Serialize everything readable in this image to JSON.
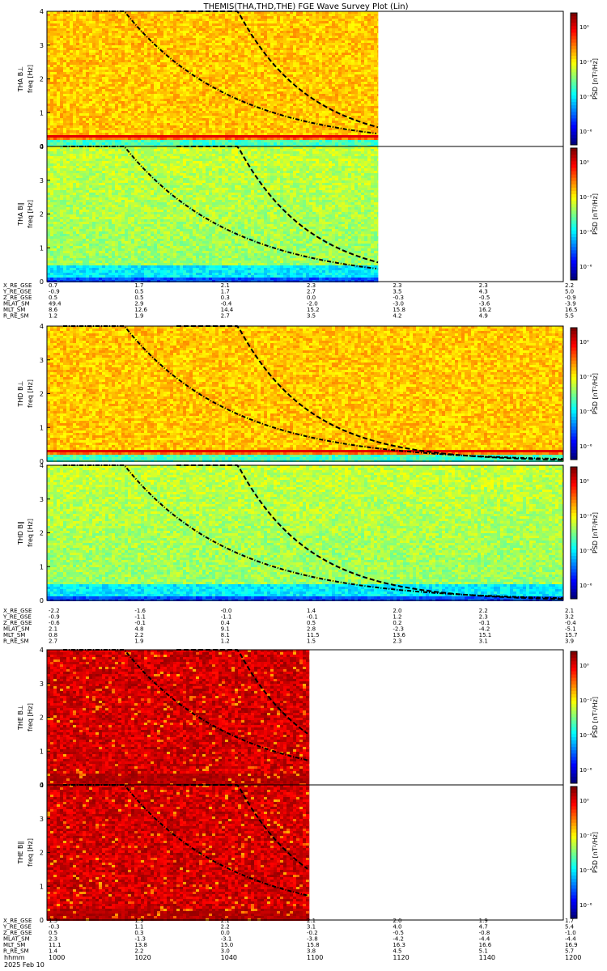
{
  "title": "THEMIS(THA,THD,THE) FGE Wave Survey Plot (Lin)",
  "colorbar": {
    "label": "PSD [nT²/Hz]",
    "ticks": [
      "10⁰",
      "10⁻²",
      "10⁻⁴",
      "10⁻⁶"
    ]
  },
  "freq_ticks": [
    "0",
    "1",
    "2",
    "3",
    "4"
  ],
  "colors": {
    "high": "#e00000",
    "mid": "#ffff00",
    "low": "#00c8ff",
    "floor": "#0000b0"
  },
  "chart_data": {
    "type": "heatmap",
    "x_range": [
      1000,
      1200
    ],
    "y_range": [
      0,
      4
    ],
    "y_unit": "Hz",
    "time_ticks": [
      "1000",
      "1020",
      "1040",
      "1100",
      "1120",
      "1140",
      "1200"
    ],
    "time_axis_label": "hhmm",
    "date_label": "2025 Feb 10",
    "panels": [
      {
        "name": "THA B⊥",
        "ylabel": "freq [Hz]",
        "data_end": 1077,
        "level": "mid"
      },
      {
        "name": "THA B∥",
        "ylabel": "freq [Hz]",
        "data_end": 1077,
        "level": "low"
      },
      {
        "name": "THD B⊥",
        "ylabel": "freq [Hz]",
        "data_end": 1200,
        "level": "mid"
      },
      {
        "name": "THD B∥",
        "ylabel": "freq [Hz]",
        "data_end": 1200,
        "level": "low"
      },
      {
        "name": "THE B⊥",
        "ylabel": "freq [Hz]",
        "data_end": 1061,
        "level": "high"
      },
      {
        "name": "THE B∥",
        "ylabel": "freq [Hz]",
        "data_end": 1061,
        "level": "high"
      }
    ],
    "ephemeris_blocks": [
      {
        "probe": "THA",
        "rows": [
          {
            "label": "X_RE_GSE",
            "values": [
              "0.7",
              "1.7",
              "2.1",
              "2.3",
              "2.3",
              "2.3",
              "2.2"
            ]
          },
          {
            "label": "Y_RE_GSE",
            "values": [
              "-0.9",
              "0.5",
              "1.7",
              "2.7",
              "3.5",
              "4.3",
              "5.0"
            ]
          },
          {
            "label": "Z_RE_GSE",
            "values": [
              "0.5",
              "0.5",
              "0.3",
              "0.0",
              "-0.3",
              "-0.5",
              "-0.9"
            ]
          },
          {
            "label": "MLAT_SM",
            "values": [
              "49.4",
              "2.9",
              "-0.4",
              "-2.0",
              "-3.0",
              "-3.6",
              "-3.9"
            ]
          },
          {
            "label": "MLT_SM",
            "values": [
              "8.6",
              "12.6",
              "14.4",
              "15.2",
              "15.8",
              "16.2",
              "16.5"
            ]
          },
          {
            "label": "R_RE_SM",
            "values": [
              "1.2",
              "1.9",
              "2.7",
              "3.5",
              "4.2",
              "4.9",
              "5.5"
            ]
          }
        ]
      },
      {
        "probe": "THD",
        "rows": [
          {
            "label": "X_RE_GSE",
            "values": [
              "-2.2",
              "-1.6",
              "-0.0",
              "1.4",
              "2.0",
              "2.2",
              "2.1"
            ]
          },
          {
            "label": "Y_RE_GSE",
            "values": [
              "-0.9",
              "-1.1",
              "-1.1",
              "-0.1",
              "1.2",
              "2.3",
              "3.2"
            ]
          },
          {
            "label": "Z_RE_GSE",
            "values": [
              "-0.6",
              "-0.1",
              "0.4",
              "0.5",
              "0.2",
              "-0.1",
              "-0.4"
            ]
          },
          {
            "label": "MLAT_SM",
            "values": [
              "2.1",
              "4.8",
              "9.1",
              "2.8",
              "-2.3",
              "-4.2",
              "-5.1"
            ]
          },
          {
            "label": "MLT_SM",
            "values": [
              "0.8",
              "2.2",
              "8.1",
              "11.5",
              "13.6",
              "15.1",
              "15.7"
            ]
          },
          {
            "label": "R_RE_SM",
            "values": [
              "2.7",
              "1.9",
              "1.2",
              "1.5",
              "2.3",
              "3.1",
              "3.9"
            ]
          }
        ]
      },
      {
        "probe": "THE",
        "rows": [
          {
            "label": "X_RE_GSE",
            "values": [
              "1.3",
              "1.9",
              "2.1",
              "2.1",
              "2.0",
              "1.9",
              "1.7"
            ]
          },
          {
            "label": "Y_RE_GSE",
            "values": [
              "-0.3",
              "1.1",
              "2.2",
              "3.1",
              "4.0",
              "4.7",
              "5.4"
            ]
          },
          {
            "label": "Z_RE_GSE",
            "values": [
              "0.5",
              "0.3",
              "0.0",
              "-0.2",
              "-0.5",
              "-0.8",
              "-1.0"
            ]
          },
          {
            "label": "MLAT_SM",
            "values": [
              "2.3",
              "-1.3",
              "-3.1",
              "-3.8",
              "-4.2",
              "-4.4",
              "-4.4"
            ]
          },
          {
            "label": "MLT_SM",
            "values": [
              "11.1",
              "13.8",
              "15.0",
              "15.8",
              "16.3",
              "16.6",
              "16.9"
            ]
          },
          {
            "label": "R_RE_SM",
            "values": [
              "1.4",
              "2.2",
              "3.0",
              "3.8",
              "4.5",
              "5.1",
              "5.7"
            ]
          }
        ]
      }
    ]
  }
}
